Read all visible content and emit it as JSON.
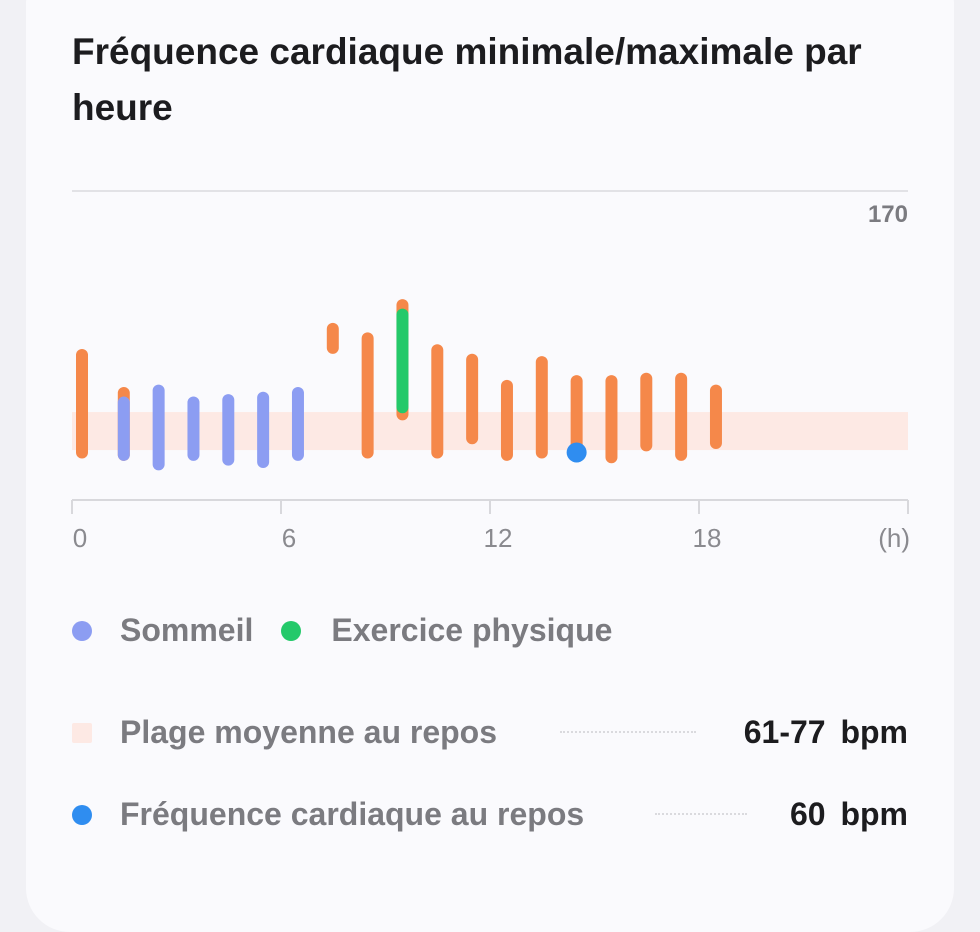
{
  "title": "Fréquence cardiaque minimale/maximale par heure",
  "colors": {
    "heart_rate": "#f5884a",
    "sleep": "#8c9df2",
    "exercise": "#24c96a",
    "resting_range": "#fde9e4",
    "resting_rate": "#2f8df0",
    "axis": "#d8d8dc"
  },
  "chart_data": {
    "type": "range-bar",
    "title": "Fréquence cardiaque minimale/maximale par heure",
    "x_unit": "(h)",
    "x_ticks": [
      "0",
      "6",
      "12",
      "18"
    ],
    "xlim": [
      0,
      24
    ],
    "y_max_label": "170",
    "ylim": [
      40,
      170
    ],
    "heart_rate_ranges": [
      {
        "hour": 0,
        "min": 60,
        "max": 101
      },
      {
        "hour": 1.2,
        "min": 59,
        "max": 85
      },
      {
        "hour": 7.2,
        "min": 104,
        "max": 112
      },
      {
        "hour": 8.2,
        "min": 60,
        "max": 108
      },
      {
        "hour": 9.2,
        "min": 76,
        "max": 122
      },
      {
        "hour": 10.2,
        "min": 60,
        "max": 103
      },
      {
        "hour": 11.2,
        "min": 66,
        "max": 99
      },
      {
        "hour": 12.2,
        "min": 59,
        "max": 88
      },
      {
        "hour": 13.2,
        "min": 60,
        "max": 98
      },
      {
        "hour": 14.2,
        "min": 62,
        "max": 90
      },
      {
        "hour": 15.2,
        "min": 58,
        "max": 90
      },
      {
        "hour": 16.2,
        "min": 63,
        "max": 91
      },
      {
        "hour": 17.2,
        "min": 59,
        "max": 91
      },
      {
        "hour": 18.2,
        "min": 64,
        "max": 86
      }
    ],
    "sleep_ranges": [
      {
        "hour": 1.2,
        "min": 59,
        "max": 81
      },
      {
        "hour": 2.2,
        "min": 55,
        "max": 86
      },
      {
        "hour": 3.2,
        "min": 59,
        "max": 81
      },
      {
        "hour": 4.2,
        "min": 57,
        "max": 82
      },
      {
        "hour": 5.2,
        "min": 56,
        "max": 83
      },
      {
        "hour": 6.2,
        "min": 59,
        "max": 85
      }
    ],
    "exercise_ranges": [
      {
        "hour": 9.2,
        "min": 79,
        "max": 118
      }
    ],
    "resting_range_band": [
      61,
      77
    ],
    "resting_rate_point": {
      "hour": 14.2,
      "value": 60
    }
  },
  "legend": {
    "sleep": "Sommeil",
    "exercise": "Exercice physique"
  },
  "stats": {
    "resting_range_label": "Plage moyenne au repos",
    "resting_range_value": "61-77",
    "resting_range_unit": "bpm",
    "resting_rate_label": "Fréquence cardiaque au repos",
    "resting_rate_value": "60",
    "resting_rate_unit": "bpm"
  }
}
